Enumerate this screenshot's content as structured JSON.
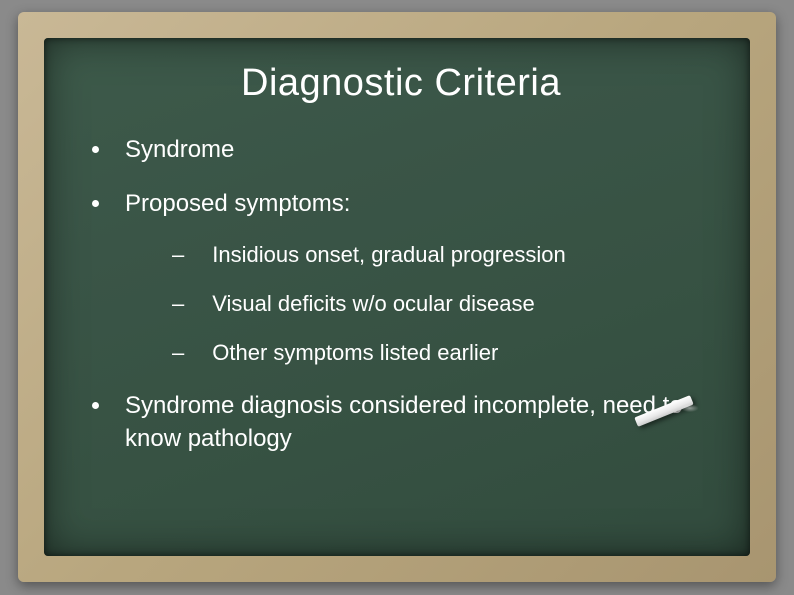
{
  "slide": {
    "title": "Diagnostic Criteria",
    "bullets": [
      {
        "text": "Syndrome"
      },
      {
        "text": "Proposed symptoms:"
      }
    ],
    "subitems": [
      {
        "text": "Insidious onset, gradual progression"
      },
      {
        "text": "Visual deficits w/o ocular disease"
      },
      {
        "text": "Other symptoms listed earlier"
      }
    ],
    "final_bullet": "Syndrome diagnosis considered incomplete, need to know pathology"
  },
  "style": {
    "text_color": "#ffffff",
    "chalkboard_color": "#3a5547",
    "frame_color": "#b8a67e",
    "title_fontsize": 38,
    "body_fontsize": 24,
    "sub_fontsize": 22
  }
}
